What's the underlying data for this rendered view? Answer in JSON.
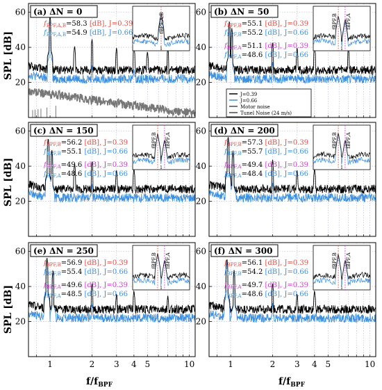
{
  "figure": {
    "ylabel": "SPL [dB]",
    "xlabel": "f/f",
    "xlabel_sub": "BPF",
    "yticks": [
      "20",
      "40",
      "60"
    ],
    "xticks": [
      "1",
      "2",
      "3",
      "4",
      "5",
      "10"
    ],
    "colors": {
      "black_series": "#000000",
      "blue_series": "#3d8fe0",
      "gray_series": "#777777",
      "red_label": "#e0504a",
      "magenta_label": "#cc44cc",
      "grid": "#b0b0c8"
    }
  },
  "legend": {
    "items": [
      "J=0.39",
      "J=0.66",
      "Motor noise",
      "Tunel Noise (24 m/s)"
    ]
  },
  "panels": [
    {
      "tag": "(a)",
      "title": "ΔN = 0",
      "annotations": [
        {
          "sym": "f",
          "sub": "BPF,A,B",
          "val": "=58.3",
          "rest": "[dB], J=0.39",
          "color": "red"
        },
        {
          "sym": "f",
          "sub": "BPF,A,B",
          "val": "=54.9",
          "rest": "[dB], J=0.66",
          "color": "blue"
        }
      ],
      "inset_labels": [
        "f",
        "BPF,A,B"
      ],
      "inset_tick": "1"
    },
    {
      "tag": "(b)",
      "title": "ΔN = 50",
      "annotations": [
        {
          "sym": "f",
          "sub": "BPF,B",
          "val": "=55.1",
          "rest": "[dB], J=0.39",
          "color": "red"
        },
        {
          "sym": "f",
          "sub": "BPF,B",
          "val": "=55.2",
          "rest": "[dB], J=0.66",
          "color": "blue"
        },
        {
          "sym": "f",
          "sub": "BPF,A",
          "val": "=51.1",
          "rest": "[dB], J=0.39",
          "color": "magenta"
        },
        {
          "sym": "f",
          "sub": "BPF,A",
          "val": "=48.6",
          "rest": "[dB], J=0.66",
          "color": "blue"
        }
      ],
      "inset_labels": [
        "BPF,B",
        "BPF,A"
      ],
      "inset_tick": "1"
    },
    {
      "tag": "(c)",
      "title": "ΔN = 150",
      "annotations": [
        {
          "sym": "f",
          "sub": "BPF,B",
          "val": "=56.2",
          "rest": "[dB], J=0.39",
          "color": "red"
        },
        {
          "sym": "f",
          "sub": "BPF,B",
          "val": "=55.1",
          "rest": "[dB], J=0.66",
          "color": "blue"
        },
        {
          "sym": "f",
          "sub": "BPF,A",
          "val": "=49.6",
          "rest": "[dB], J=0.39",
          "color": "magenta"
        },
        {
          "sym": "f",
          "sub": "BPF,A",
          "val": "=48.6",
          "rest": "[dB], J=0.66",
          "color": "blue"
        }
      ],
      "inset_labels": [
        "BPF,B",
        "BPF,A"
      ],
      "inset_tick": "1"
    },
    {
      "tag": "(d)",
      "title": "ΔN = 200",
      "annotations": [
        {
          "sym": "f",
          "sub": "BPF,B",
          "val": "=57.3",
          "rest": "[dB], J=0.39",
          "color": "red"
        },
        {
          "sym": "f",
          "sub": "BPF,B",
          "val": "=55.7",
          "rest": "[dB], J=0.66",
          "color": "blue"
        },
        {
          "sym": "f",
          "sub": "BPF,A",
          "val": "=49.4",
          "rest": "[dB], J=0.39",
          "color": "magenta"
        },
        {
          "sym": "f",
          "sub": "BPF,A",
          "val": "=48.4",
          "rest": "[dB], J=0.66",
          "color": "blue"
        }
      ],
      "inset_labels": [
        "BPF,B",
        "BPF,A"
      ],
      "inset_tick": "1"
    },
    {
      "tag": "(e)",
      "title": "ΔN = 250",
      "annotations": [
        {
          "sym": "f",
          "sub": "BPF,B",
          "val": "=56.9",
          "rest": "[dB], J=0.39",
          "color": "red"
        },
        {
          "sym": "f",
          "sub": "BPF,B",
          "val": "=55.4",
          "rest": "[dB], J=0.66",
          "color": "blue"
        },
        {
          "sym": "f",
          "sub": "BPF,A",
          "val": "=49.6",
          "rest": "[dB], J=0.39",
          "color": "magenta"
        },
        {
          "sym": "f",
          "sub": "BPF,A",
          "val": "=48.5",
          "rest": "[dB], J=0.66",
          "color": "blue"
        }
      ],
      "inset_labels": [
        "BPF,B",
        "BPF,A"
      ],
      "inset_tick": "1"
    },
    {
      "tag": "(f)",
      "title": "ΔN = 300",
      "annotations": [
        {
          "sym": "f",
          "sub": "BPF,B",
          "val": "=56.1",
          "rest": "[dB], J=0.39",
          "color": "red"
        },
        {
          "sym": "f",
          "sub": "BPF,B",
          "val": "=54.2",
          "rest": "[dB], J=0.66",
          "color": "blue"
        },
        {
          "sym": "f",
          "sub": "BPF,A",
          "val": "=49.7",
          "rest": "[dB], J=0.39",
          "color": "magenta"
        },
        {
          "sym": "f",
          "sub": "BPF,A",
          "val": "=48.6",
          "rest": "[dB], J=0.66",
          "color": "blue"
        }
      ],
      "inset_labels": [
        "BPF,B",
        "BPF,A"
      ],
      "inset_tick": "1"
    }
  ],
  "chart_data": {
    "type": "line",
    "x_scale": "log",
    "xlim": [
      0.7,
      11
    ],
    "ylim": [
      0,
      65
    ],
    "grid": "on",
    "legend_position": "panel (b), lower-left",
    "series_styles": [
      {
        "name": "J=0.39",
        "color": "#000000",
        "baseline_db": 27
      },
      {
        "name": "J=0.66",
        "color": "#3d8fe0",
        "baseline_db": 22
      },
      {
        "name": "Motor noise",
        "color": "#777777"
      },
      {
        "name": "Tunel Noise (24 m/s)",
        "color": "#777777"
      }
    ],
    "panels": [
      {
        "id": "a",
        "peaks_black": [
          [
            1,
            58.3
          ],
          [
            1.5,
            41
          ],
          [
            2,
            45
          ],
          [
            3,
            40
          ],
          [
            4,
            41
          ],
          [
            5,
            38
          ],
          [
            7,
            40
          ]
        ],
        "peaks_blue": [
          [
            1,
            54.9
          ],
          [
            2,
            30
          ],
          [
            4,
            28
          ]
        ],
        "motor_noise": [
          [
            0.7,
            15
          ],
          [
            11,
            2
          ]
        ]
      },
      {
        "id": "b",
        "peaks_black": [
          [
            0.98,
            55.1
          ],
          [
            1.02,
            51.1
          ],
          [
            2,
            43
          ],
          [
            3,
            40
          ],
          [
            4,
            41
          ],
          [
            7,
            40
          ]
        ],
        "peaks_blue": [
          [
            0.98,
            55.2
          ],
          [
            1.02,
            48.6
          ],
          [
            2,
            32
          ]
        ]
      },
      {
        "id": "c",
        "peaks_black": [
          [
            0.97,
            56.2
          ],
          [
            1.03,
            49.6
          ],
          [
            1.5,
            42
          ],
          [
            2,
            43
          ],
          [
            3,
            38
          ],
          [
            4,
            39
          ]
        ],
        "peaks_blue": [
          [
            0.97,
            55.1
          ],
          [
            1.03,
            48.6
          ],
          [
            2,
            30
          ]
        ]
      },
      {
        "id": "d",
        "peaks_black": [
          [
            0.96,
            57.3
          ],
          [
            1.04,
            49.4
          ],
          [
            2,
            44
          ],
          [
            3,
            38
          ],
          [
            4,
            39
          ]
        ],
        "peaks_blue": [
          [
            0.96,
            55.7
          ],
          [
            1.04,
            48.4
          ],
          [
            2,
            31
          ]
        ]
      },
      {
        "id": "e",
        "peaks_black": [
          [
            0.95,
            56.9
          ],
          [
            1.05,
            49.6
          ],
          [
            2,
            42
          ],
          [
            3,
            36
          ],
          [
            4,
            38
          ],
          [
            7,
            35
          ]
        ],
        "peaks_blue": [
          [
            0.95,
            55.4
          ],
          [
            1.05,
            48.5
          ],
          [
            2,
            30
          ]
        ]
      },
      {
        "id": "f",
        "peaks_black": [
          [
            0.94,
            56.1
          ],
          [
            1.06,
            49.7
          ],
          [
            2,
            42
          ],
          [
            3,
            36
          ],
          [
            4,
            38
          ]
        ],
        "peaks_blue": [
          [
            0.94,
            54.2
          ],
          [
            1.06,
            48.6
          ],
          [
            2,
            31
          ]
        ]
      }
    ]
  }
}
